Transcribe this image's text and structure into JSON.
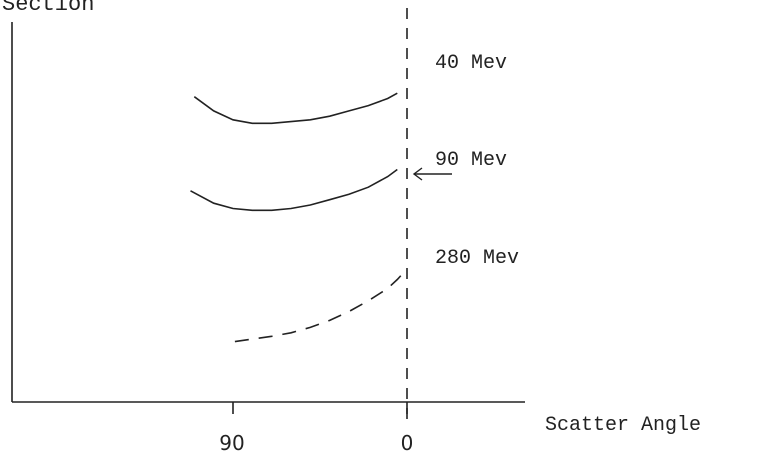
{
  "chart_data": {
    "type": "line",
    "title": "",
    "ylabel": "Cross Section",
    "xlabel": "Scatter Angle",
    "x_ticks": [
      {
        "value": 90,
        "label": "90"
      },
      {
        "value": 0,
        "label": "0"
      }
    ],
    "xlim": [
      115,
      -10
    ],
    "ylim": [
      0,
      10
    ],
    "grid": false,
    "series": [
      {
        "name": "40 Mev",
        "style": "solid",
        "x": [
          110,
          100,
          90,
          80,
          70,
          60,
          50,
          40,
          30,
          20,
          10,
          5
        ],
        "y": [
          8.6,
          8.2,
          7.95,
          7.85,
          7.85,
          7.9,
          7.95,
          8.05,
          8.2,
          8.35,
          8.55,
          8.7
        ]
      },
      {
        "name": "90 Mev",
        "style": "solid",
        "x": [
          112,
          100,
          90,
          80,
          70,
          60,
          50,
          40,
          30,
          20,
          10,
          5
        ],
        "y": [
          5.95,
          5.6,
          5.45,
          5.4,
          5.4,
          5.45,
          5.55,
          5.7,
          5.85,
          6.05,
          6.35,
          6.55
        ]
      },
      {
        "name": "280 Mev",
        "style": "dashed",
        "x": [
          89,
          70,
          60,
          50,
          40,
          30,
          20,
          10,
          5,
          0
        ],
        "y": [
          1.7,
          1.85,
          1.95,
          2.1,
          2.3,
          2.55,
          2.85,
          3.2,
          3.45,
          3.75
        ]
      }
    ]
  },
  "labels": {
    "top_left": "Section",
    "e40": "40  Mev",
    "e90": "90  Mev",
    "e280": "280 Mev"
  },
  "colors": {
    "ink": "#222222"
  }
}
